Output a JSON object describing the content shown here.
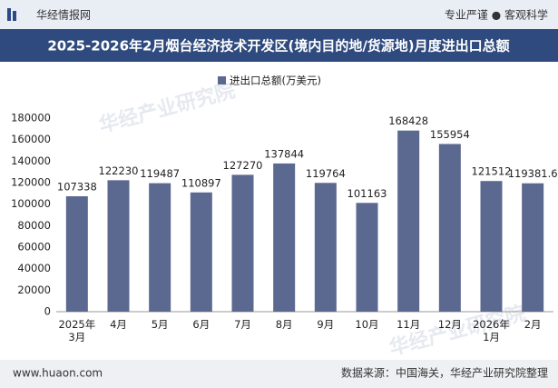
{
  "header": {
    "brand": "华经情报网",
    "slogan": "专业严谨 ● 客观科学"
  },
  "watermark": "华经产业研究院",
  "footer": {
    "website": "www.huaon.com",
    "source": "数据来源：中国海关，华经产业研究院整理"
  },
  "chart_data": {
    "type": "bar",
    "title": "2025-2026年2月烟台经济技术开发区(境内目的地/货源地)月度进出口总额",
    "categories": [
      "2025年\n3月",
      "4月",
      "5月",
      "6月",
      "7月",
      "8月",
      "9月",
      "10月",
      "11月",
      "12月",
      "2026年\n1月",
      "2月"
    ],
    "series": [
      {
        "name": "进出口总额(万美元)",
        "color": "#5b6890",
        "values": [
          107338,
          122230,
          119487,
          110897,
          127270,
          137844,
          119764,
          101163,
          168428,
          155954,
          121512,
          119381.6
        ]
      }
    ],
    "ylim": [
      0,
      180000
    ],
    "yticks": [
      0,
      20000,
      40000,
      60000,
      80000,
      100000,
      120000,
      140000,
      160000,
      180000
    ],
    "grid": false,
    "legend": "top"
  }
}
